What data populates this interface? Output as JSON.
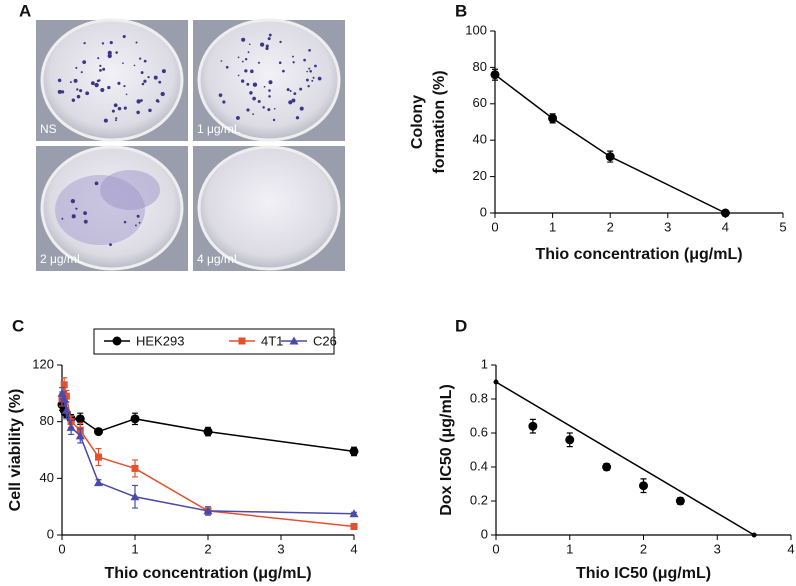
{
  "photos": {
    "label": "A",
    "captions": [
      "NS",
      "1 μg/mL",
      "2 μg/mL",
      "4 μg/mL"
    ]
  },
  "chart_data": [
    {
      "type": "line",
      "label": "B",
      "xlabel": "Thio concentration (μg/mL)",
      "ylabel": [
        "Colony",
        "formation (%)"
      ],
      "x": [
        0,
        1,
        2,
        4
      ],
      "series": [
        {
          "color": "#000000",
          "marker": "circle",
          "line": true,
          "values": [
            76,
            52,
            31,
            0
          ],
          "errors": [
            3,
            2.5,
            3,
            0
          ]
        }
      ],
      "xlim": [
        0,
        5
      ],
      "xticks": [
        0,
        1,
        2,
        3,
        4,
        5
      ],
      "ylim": [
        0,
        100
      ],
      "yticks": [
        0,
        20,
        40,
        60,
        80,
        100
      ]
    },
    {
      "type": "line",
      "label": "C",
      "xlabel": "Thio concentration (μg/mL)",
      "ylabel": "Cell viability (%)",
      "x": [
        0,
        0.03,
        0.06,
        0.125,
        0.25,
        0.5,
        1,
        2,
        4
      ],
      "series": [
        {
          "name": "HEK293",
          "color": "#000000",
          "marker": "circle",
          "line": true,
          "values": [
            92,
            88,
            86,
            82,
            82,
            73,
            82,
            73,
            59
          ],
          "errors": [
            4,
            3,
            3,
            3,
            4,
            2,
            4,
            3,
            3
          ]
        },
        {
          "name": "4T1",
          "color": "#e4502e",
          "marker": "square",
          "line": true,
          "values": [
            96,
            106,
            98,
            80,
            74,
            55,
            47,
            17,
            6
          ],
          "errors": [
            5,
            5,
            4,
            4,
            5,
            6,
            6,
            2,
            1
          ]
        },
        {
          "name": "C26",
          "color": "#4a4aa8",
          "marker": "triangle",
          "line": true,
          "values": [
            100,
            96,
            88,
            76,
            70,
            37,
            27,
            17,
            15
          ],
          "errors": [
            4,
            5,
            6,
            5,
            5,
            2,
            8,
            3,
            1
          ]
        }
      ],
      "xlim": [
        0,
        4
      ],
      "xticks": [
        0,
        1,
        2,
        3,
        4
      ],
      "ylim": [
        0,
        120
      ],
      "yticks": [
        0,
        40,
        80,
        120
      ],
      "legend": "top"
    },
    {
      "type": "scatter",
      "label": "D",
      "xlabel": "Thio IC50 (μg/mL)",
      "ylabel": "Dox IC50 (μg/mL)",
      "series": [
        {
          "color": "#000000",
          "marker": "dot",
          "line": true,
          "x": [
            0,
            3.5
          ],
          "values": [
            0.9,
            0
          ]
        },
        {
          "color": "#000000",
          "marker": "circle",
          "line": false,
          "x": [
            0.5,
            1,
            1.5,
            2,
            2.5
          ],
          "values": [
            0.64,
            0.56,
            0.4,
            0.29,
            0.2
          ],
          "errors": [
            0.04,
            0.04,
            0.02,
            0.04,
            0.02
          ]
        }
      ],
      "xlim": [
        0,
        4
      ],
      "xticks": [
        0,
        1,
        2,
        3,
        4
      ],
      "ylim": [
        0,
        1
      ],
      "yticks": [
        0,
        0.2,
        0.4,
        0.6,
        0.8,
        1
      ]
    }
  ]
}
